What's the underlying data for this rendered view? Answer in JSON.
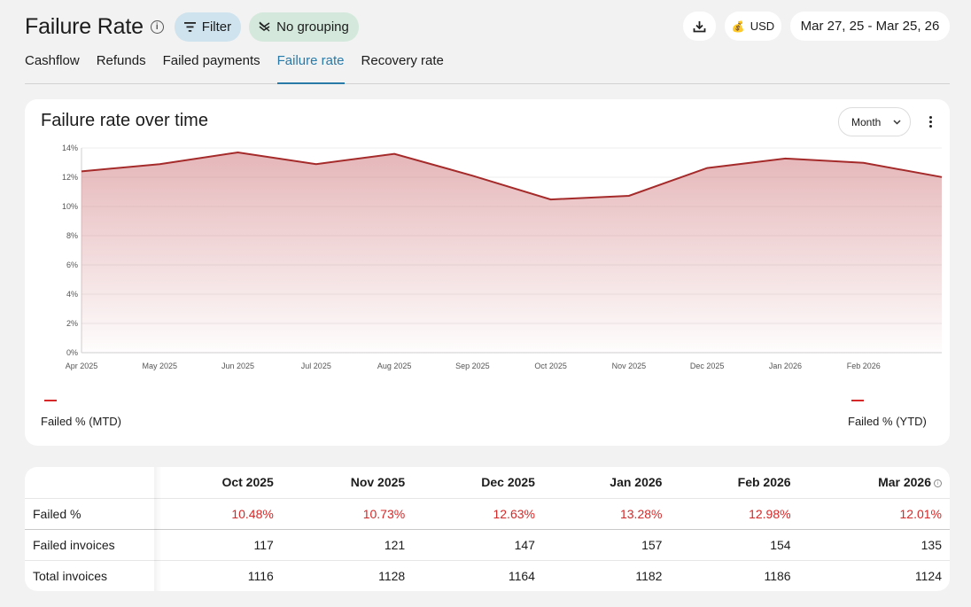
{
  "header": {
    "title": "Failure Rate",
    "filter_label": "Filter",
    "grouping_label": "No grouping",
    "currency": "USD",
    "date_range": "Mar 27, 25 - Mar 25, 26"
  },
  "tabs": [
    {
      "label": "Cashflow",
      "active": false
    },
    {
      "label": "Refunds",
      "active": false
    },
    {
      "label": "Failed payments",
      "active": false
    },
    {
      "label": "Failure rate",
      "active": true
    },
    {
      "label": "Recovery rate",
      "active": false
    }
  ],
  "chart_card": {
    "title": "Failure rate over time",
    "period_select": "Month",
    "legend": [
      "Failed % (MTD)",
      "Failed % (YTD)"
    ]
  },
  "chart_data": {
    "type": "area",
    "title": "Failure rate over time",
    "x": [
      "Apr 2025",
      "May 2025",
      "Jun 2025",
      "Jul 2025",
      "Aug 2025",
      "Sep 2025",
      "Oct 2025",
      "Nov 2025",
      "Dec 2025",
      "Jan 2026",
      "Feb 2026",
      "Mar 2026"
    ],
    "x_tick_labels": [
      "Apr 2025",
      "May 2025",
      "Jun 2025",
      "Jul 2025",
      "Aug 2025",
      "Sep 2025",
      "Oct 2025",
      "Nov 2025",
      "Dec 2025",
      "Jan 2026",
      "Feb 2026"
    ],
    "series": [
      {
        "name": "Failed % (MTD)",
        "values": [
          12.4,
          12.9,
          13.7,
          12.9,
          13.6,
          12.1,
          10.48,
          10.73,
          12.63,
          13.28,
          12.98,
          12.01
        ]
      }
    ],
    "y_ticks": [
      "0%",
      "2%",
      "4%",
      "6%",
      "8%",
      "10%",
      "12%",
      "14%"
    ],
    "ylim": [
      0,
      14
    ],
    "grid": true,
    "legend_position": "bottom",
    "line_color": "#a52a2a",
    "fill_color": "#d4868a"
  },
  "table": {
    "columns": [
      "Oct 2025",
      "Nov 2025",
      "Dec 2025",
      "Jan 2026",
      "Feb 2026",
      "Mar 2026"
    ],
    "rows": [
      {
        "label": "Failed %",
        "values": [
          "10.48%",
          "10.73%",
          "12.63%",
          "13.28%",
          "12.98%",
          "12.01%"
        ]
      },
      {
        "label": "Failed invoices",
        "values": [
          "117",
          "121",
          "147",
          "157",
          "154",
          "135"
        ]
      },
      {
        "label": "Total invoices",
        "values": [
          "1116",
          "1128",
          "1164",
          "1182",
          "1186",
          "1124"
        ]
      }
    ]
  },
  "colors": {
    "accent": "#2a7aa8",
    "fail_red": "#d62828"
  }
}
